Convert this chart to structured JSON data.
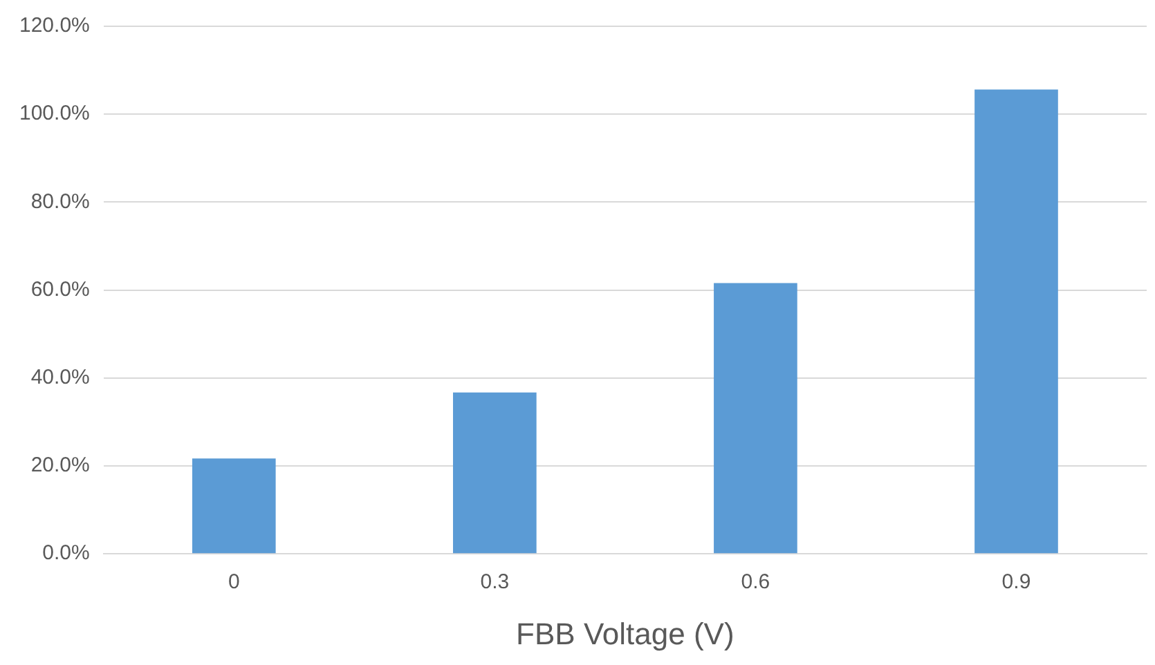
{
  "chart_data": {
    "type": "bar",
    "xlabel": "FBB Voltage (V)",
    "categories": [
      "0",
      "0.3",
      "0.6",
      "0.9"
    ],
    "values": [
      21.7,
      36.7,
      61.6,
      105.6
    ],
    "color": "#5b9bd5",
    "ylim": [
      0,
      120
    ],
    "yticks": [
      {
        "value": 0,
        "label": "0.0%"
      },
      {
        "value": 20,
        "label": "20.0%"
      },
      {
        "value": 40,
        "label": "40.0%"
      },
      {
        "value": 60,
        "label": "60.0%"
      },
      {
        "value": 80,
        "label": "80.0%"
      },
      {
        "value": 100,
        "label": "100.0%"
      },
      {
        "value": 120,
        "label": "120.0%"
      }
    ],
    "grid": "y",
    "legend": false
  }
}
